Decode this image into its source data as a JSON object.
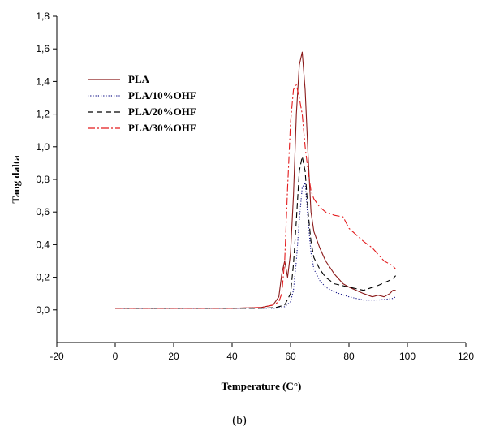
{
  "chart_data": {
    "type": "line",
    "xlabel": "Temperature (C°)",
    "ylabel": "Tang dalta",
    "caption": "(b)",
    "xlim": [
      -20,
      120
    ],
    "ylim": [
      -0.2,
      1.8
    ],
    "x_ticks": [
      -20,
      0,
      20,
      40,
      60,
      80,
      100,
      120
    ],
    "x_tick_labels": [
      "-20",
      "0",
      "20",
      "40",
      "60",
      "80",
      "100",
      "120"
    ],
    "y_ticks": [
      0.0,
      0.2,
      0.4,
      0.6,
      0.8,
      1.0,
      1.2,
      1.4,
      1.6,
      1.8
    ],
    "y_tick_labels": [
      "0,0",
      "0,2",
      "0,4",
      "0,6",
      "0,8",
      "1,0",
      "1,2",
      "1,4",
      "1,6",
      "1,8"
    ],
    "grid": false,
    "legend_position": "top-left",
    "series": [
      {
        "name": "PLA",
        "color": "#8b1a1a",
        "dash": "solid",
        "x": [
          0,
          20,
          40,
          50,
          54,
          56,
          57,
          58,
          59,
          60,
          61,
          62,
          63,
          64,
          65,
          66,
          67,
          68,
          70,
          72,
          75,
          78,
          80,
          85,
          88,
          90,
          92,
          94,
          95,
          96
        ],
        "y": [
          0.01,
          0.01,
          0.01,
          0.015,
          0.03,
          0.08,
          0.22,
          0.3,
          0.2,
          0.35,
          0.7,
          1.2,
          1.5,
          1.58,
          1.35,
          0.95,
          0.6,
          0.48,
          0.38,
          0.3,
          0.22,
          0.16,
          0.14,
          0.1,
          0.08,
          0.09,
          0.08,
          0.1,
          0.12,
          0.12
        ]
      },
      {
        "name": "PLA/10%OHF",
        "color": "#1a1a8b",
        "dash": "dotted",
        "x": [
          0,
          20,
          40,
          50,
          55,
          58,
          60,
          61,
          62,
          63,
          64,
          65,
          66,
          67,
          68,
          70,
          72,
          75,
          80,
          85,
          90,
          95,
          96
        ],
        "y": [
          0.01,
          0.01,
          0.01,
          0.01,
          0.01,
          0.02,
          0.05,
          0.12,
          0.3,
          0.55,
          0.75,
          0.78,
          0.55,
          0.35,
          0.25,
          0.18,
          0.14,
          0.11,
          0.08,
          0.06,
          0.06,
          0.07,
          0.08
        ]
      },
      {
        "name": "PLA/20%OHF",
        "color": "#000000",
        "dash": "dashed",
        "x": [
          0,
          20,
          40,
          50,
          55,
          58,
          60,
          61,
          62,
          63,
          64,
          65,
          66,
          67,
          68,
          70,
          72,
          75,
          80,
          85,
          90,
          95,
          96
        ],
        "y": [
          0.01,
          0.01,
          0.01,
          0.01,
          0.015,
          0.03,
          0.1,
          0.28,
          0.55,
          0.85,
          0.94,
          0.85,
          0.6,
          0.42,
          0.32,
          0.25,
          0.2,
          0.16,
          0.14,
          0.12,
          0.15,
          0.19,
          0.21
        ]
      },
      {
        "name": "PLA/30%OHF",
        "color": "#e31a1c",
        "dash": "dashdot",
        "x": [
          0,
          20,
          40,
          50,
          54,
          56,
          57,
          58,
          59,
          60,
          61,
          62,
          63,
          64,
          65,
          66,
          67,
          68,
          70,
          72,
          75,
          78,
          80,
          85,
          88,
          90,
          92,
          94,
          95,
          96
        ],
        "y": [
          0.01,
          0.01,
          0.01,
          0.015,
          0.03,
          0.05,
          0.1,
          0.3,
          0.75,
          1.15,
          1.35,
          1.38,
          1.3,
          1.2,
          1.0,
          0.85,
          0.73,
          0.68,
          0.63,
          0.6,
          0.58,
          0.57,
          0.5,
          0.42,
          0.38,
          0.34,
          0.3,
          0.28,
          0.27,
          0.25
        ]
      }
    ]
  }
}
